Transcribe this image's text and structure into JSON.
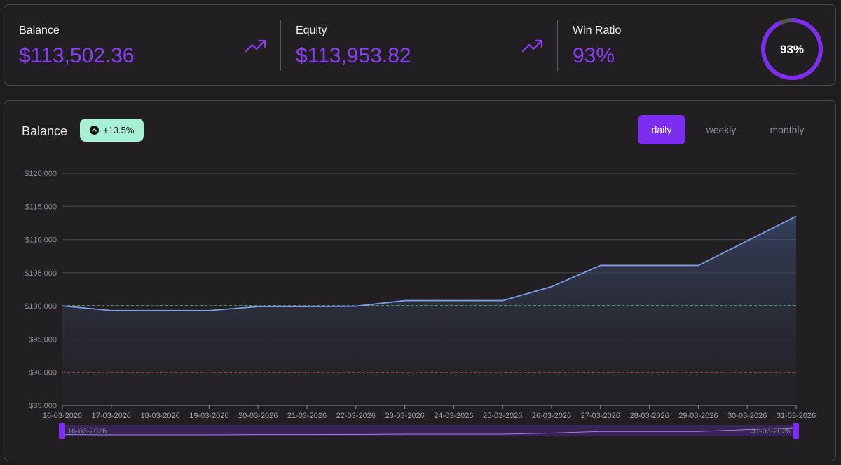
{
  "stats": {
    "balance": {
      "label": "Balance",
      "value": "$113,502.36",
      "icon": "trending-up-icon"
    },
    "equity": {
      "label": "Equity",
      "value": "$113,953.82",
      "icon": "trending-up-icon"
    },
    "win_ratio": {
      "label": "Win Ratio",
      "value": "93%",
      "ring_label": "93%",
      "percent": 93
    }
  },
  "chart_header": {
    "title": "Balance",
    "change_badge": "+13.5%",
    "periods": [
      "daily",
      "weekly",
      "monthly"
    ],
    "active_period": "daily"
  },
  "colors": {
    "accent": "#7c2df0",
    "value": "#8b3cf6",
    "line": "#7f9be6",
    "reference_start": "#9be3b4",
    "reference_floor": "#e07a7a",
    "badge_bg": "#a8f0d3"
  },
  "chart_data": {
    "type": "area",
    "title": "Balance",
    "x": [
      "16-03-2026",
      "17-03-2026",
      "18-03-2026",
      "19-03-2026",
      "20-03-2026",
      "21-03-2026",
      "22-03-2026",
      "23-03-2026",
      "24-03-2026",
      "25-03-2026",
      "26-03-2026",
      "27-03-2026",
      "28-03-2026",
      "29-03-2026",
      "30-03-2026",
      "31-03-2026"
    ],
    "series": [
      {
        "name": "Balance",
        "values": [
          100000,
          99300,
          99300,
          99300,
          99900,
          99900,
          99950,
          100800,
          100800,
          100800,
          102900,
          106100,
          106100,
          106100,
          109800,
          113500
        ]
      }
    ],
    "y_ticks": [
      85000,
      90000,
      95000,
      100000,
      105000,
      110000,
      115000,
      120000
    ],
    "y_tick_labels": [
      "$85,000",
      "$90,000",
      "$95,000",
      "$100,000",
      "$105,000",
      "$110,000",
      "$115,000",
      "$120,000"
    ],
    "ylim": [
      85000,
      120000
    ],
    "reference_lines": [
      {
        "name": "starting-balance",
        "value": 100000
      },
      {
        "name": "max-drawdown",
        "value": 90000
      }
    ],
    "grid": true,
    "range_slider": {
      "start": "16-03-2026",
      "end": "31-03-2026"
    }
  }
}
